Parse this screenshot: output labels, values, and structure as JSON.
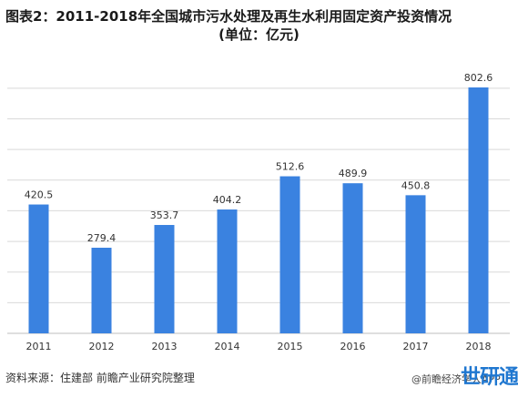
{
  "title": {
    "line1": "图表2：2011-2018年全国城市污水处理及再生水利用固定资产投资情况",
    "line2": "(单位：亿元)"
  },
  "footer": {
    "source": "资料来源：住建部 前瞻产业研究院整理",
    "brand": "@前瞻经济学人APP",
    "logo_text": "世研通"
  },
  "colors": {
    "bar": "#3a82e0",
    "grid": "#d9d9d9",
    "axis": "#bfbfbf",
    "label": "#333333"
  },
  "chart_data": {
    "type": "bar",
    "title": "图表2：2011-2018年全国城市污水处理及再生水利用固定资产投资情况",
    "subtitle": "(单位：亿元)",
    "categories": [
      "2011",
      "2012",
      "2013",
      "2014",
      "2015",
      "2016",
      "2017",
      "2018"
    ],
    "values": [
      420.5,
      279.4,
      353.7,
      404.2,
      512.6,
      489.9,
      450.8,
      802.6
    ],
    "value_labels": [
      "420.5",
      "279.4",
      "353.7",
      "404.2",
      "512.6",
      "489.9",
      "450.8",
      "802.6"
    ],
    "xlabel": "",
    "ylabel": "",
    "ylim": [
      0,
      900
    ],
    "grid": true,
    "legend": "none"
  }
}
